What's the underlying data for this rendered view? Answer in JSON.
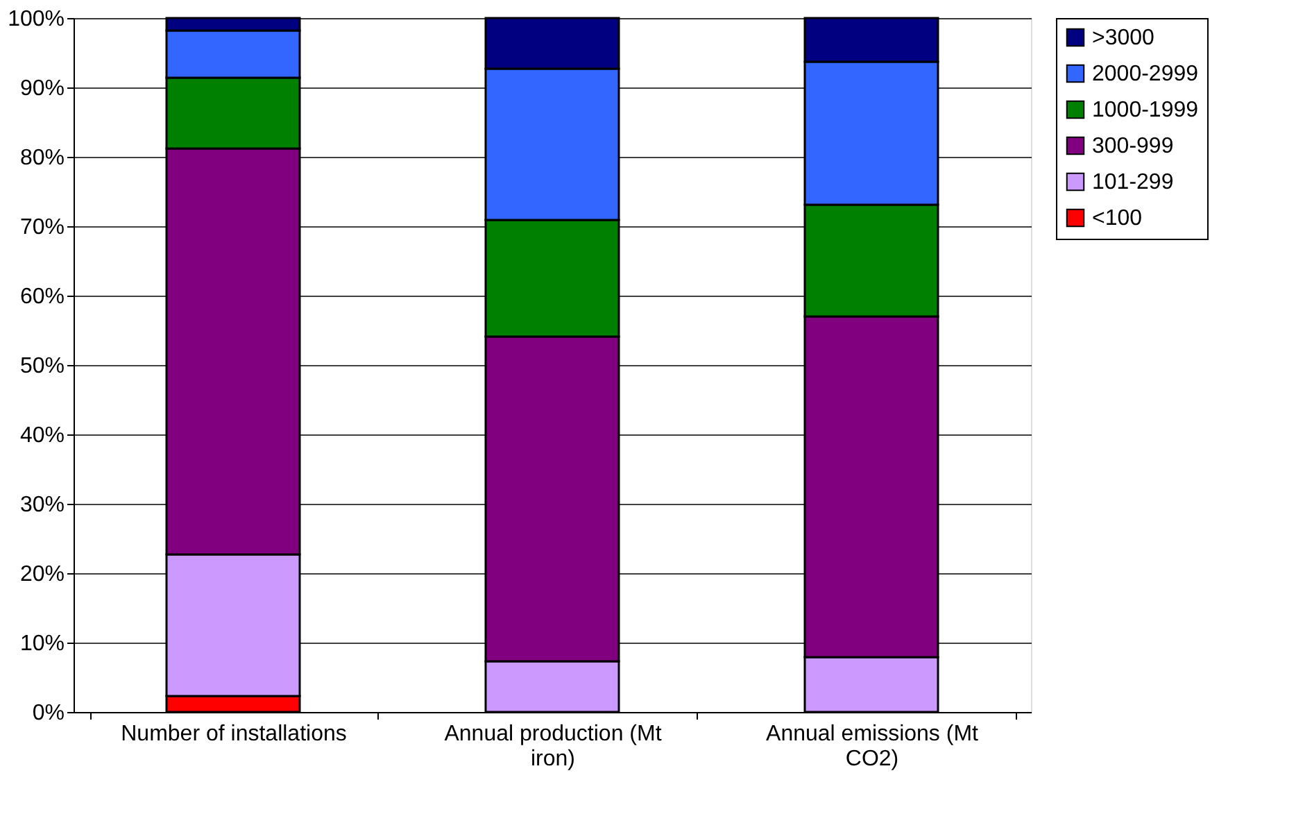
{
  "chart_data": {
    "type": "bar",
    "stacked": true,
    "categories": [
      "Number of installations",
      "Annual production (Mt iron)",
      "Annual emissions (Mt CO2)"
    ],
    "series": [
      {
        "name": "<100",
        "color": "#ff0000",
        "values": [
          2.3,
          null,
          null
        ]
      },
      {
        "name": "101-299",
        "color": "#cc99ff",
        "values": [
          20.4,
          7.3,
          7.9
        ]
      },
      {
        "name": "300-999",
        "color": "#800080",
        "values": [
          58.5,
          46.8,
          49.1
        ]
      },
      {
        "name": "1000-1999",
        "color": "#008000",
        "values": [
          10.2,
          16.8,
          16.1
        ]
      },
      {
        "name": "2000-2999",
        "color": "#3366ff",
        "values": [
          6.8,
          21.8,
          20.6
        ]
      },
      {
        "name": ">3000",
        "color": "#000080",
        "values": [
          1.8,
          7.3,
          6.3
        ]
      }
    ],
    "ylim": [
      0,
      100
    ],
    "yticks": [
      {
        "value": 0,
        "label": "0%"
      },
      {
        "value": 10,
        "label": "10%"
      },
      {
        "value": 20,
        "label": "20%"
      },
      {
        "value": 30,
        "label": "30%"
      },
      {
        "value": 40,
        "label": "40%"
      },
      {
        "value": 50,
        "label": "50%"
      },
      {
        "value": 60,
        "label": "60%"
      },
      {
        "value": 70,
        "label": "70%"
      },
      {
        "value": 80,
        "label": "80%"
      },
      {
        "value": 90,
        "label": "90%"
      },
      {
        "value": 100,
        "label": "100%"
      }
    ],
    "grid": "y",
    "legend": "right"
  }
}
